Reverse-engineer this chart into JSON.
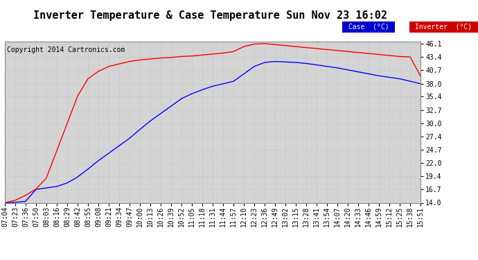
{
  "title": "Inverter Temperature & Case Temperature Sun Nov 23 16:02",
  "copyright": "Copyright 2014 Cartronics.com",
  "background_color": "#ffffff",
  "plot_bg_color": "#d4d4d4",
  "yticks": [
    14.0,
    16.7,
    19.4,
    22.0,
    24.7,
    27.4,
    30.0,
    32.7,
    35.4,
    38.0,
    40.7,
    43.4,
    46.1
  ],
  "ylim": [
    14.0,
    46.5
  ],
  "xtick_labels": [
    "07:04",
    "07:23",
    "07:36",
    "07:50",
    "08:03",
    "08:16",
    "08:29",
    "08:42",
    "08:55",
    "09:08",
    "09:21",
    "09:34",
    "09:47",
    "10:00",
    "10:13",
    "10:26",
    "10:39",
    "10:52",
    "11:05",
    "11:18",
    "11:31",
    "11:44",
    "11:57",
    "12:10",
    "12:23",
    "12:36",
    "12:49",
    "13:02",
    "13:15",
    "13:28",
    "13:41",
    "13:54",
    "14:07",
    "14:20",
    "14:33",
    "14:46",
    "14:59",
    "15:12",
    "15:25",
    "15:38",
    "15:51"
  ],
  "case_color": "#0000ff",
  "inverter_color": "#ff0000",
  "legend_case_bg": "#0000cd",
  "legend_inverter_bg": "#cc0000",
  "legend_text_color": "#ffffff",
  "case_label": "Case  (°C)",
  "inverter_label": "Inverter  (°C)",
  "grid_color": "#bbbbbb",
  "title_fontsize": 11,
  "copyright_fontsize": 7,
  "tick_fontsize": 7,
  "case_data": [
    14.0,
    14.1,
    14.3,
    16.7,
    17.0,
    17.3,
    18.0,
    19.2,
    20.8,
    22.5,
    24.0,
    25.5,
    27.0,
    28.8,
    30.5,
    32.0,
    33.5,
    35.0,
    36.0,
    36.8,
    37.5,
    38.0,
    38.5,
    40.0,
    41.5,
    42.3,
    42.5,
    42.4,
    42.3,
    42.1,
    41.8,
    41.5,
    41.2,
    40.8,
    40.4,
    40.0,
    39.6,
    39.3,
    39.0,
    38.5,
    38.0
  ],
  "inverter_data": [
    14.0,
    14.5,
    15.5,
    16.8,
    19.0,
    24.5,
    30.0,
    35.5,
    39.0,
    40.5,
    41.5,
    42.0,
    42.5,
    42.8,
    43.0,
    43.2,
    43.3,
    43.5,
    43.6,
    43.8,
    44.0,
    44.2,
    44.5,
    45.5,
    46.0,
    46.1,
    45.9,
    45.7,
    45.5,
    45.3,
    45.1,
    44.9,
    44.7,
    44.5,
    44.3,
    44.1,
    43.9,
    43.7,
    43.5,
    43.4,
    39.5
  ]
}
